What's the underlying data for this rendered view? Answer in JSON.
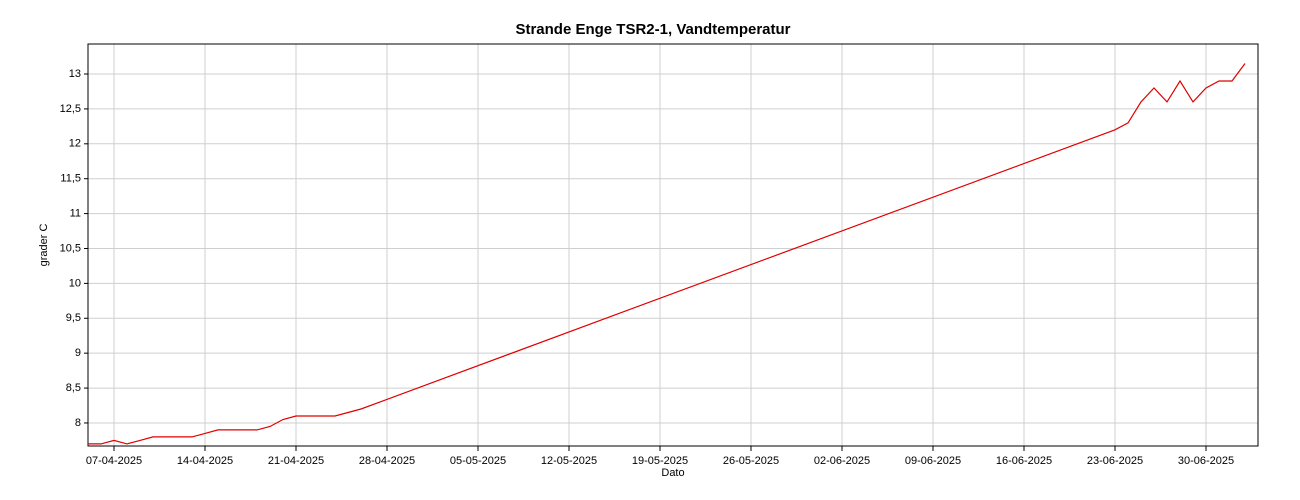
{
  "chart_data": {
    "type": "line",
    "title": "Strande Enge TSR2-1, Vandtemperatur",
    "x_label": "Dato",
    "y_label": "grader C",
    "xlim": [
      "05-04-2025",
      "04-07-2025"
    ],
    "xticks": [
      "07-04-2025",
      "14-04-2025",
      "21-04-2025",
      "28-04-2025",
      "05-05-2025",
      "12-05-2025",
      "19-05-2025",
      "26-05-2025",
      "02-06-2025",
      "09-06-2025",
      "16-06-2025",
      "23-06-2025",
      "30-06-2025"
    ],
    "ylim": [
      7.67,
      13.43
    ],
    "yticks": [
      8,
      {
        "value": 8.5,
        "label": "8,5"
      },
      9,
      {
        "value": 9.5,
        "label": "9,5"
      },
      10,
      {
        "value": 10.5,
        "label": "10,5"
      },
      11,
      {
        "value": 11.5,
        "label": "11,5"
      },
      12,
      {
        "value": 12.5,
        "label": "12,5"
      },
      13
    ],
    "grid": true,
    "series": [
      {
        "name": "Vandtemperatur",
        "color": "#e00000",
        "x": [
          "05-04-2025",
          "06-04-2025",
          "07-04-2025",
          "08-04-2025",
          "09-04-2025",
          "10-04-2025",
          "11-04-2025",
          "12-04-2025",
          "13-04-2025",
          "14-04-2025",
          "15-04-2025",
          "16-04-2025",
          "17-04-2025",
          "18-04-2025",
          "19-04-2025",
          "20-04-2025",
          "21-04-2025",
          "22-04-2025",
          "23-04-2025",
          "24-04-2025",
          "25-04-2025",
          "26-04-2025",
          "23-06-2025",
          "24-06-2025",
          "25-06-2025",
          "26-06-2025",
          "27-06-2025",
          "28-06-2025",
          "29-06-2025",
          "30-06-2025",
          "01-07-2025",
          "02-07-2025",
          "03-07-2025"
        ],
        "values": [
          7.7,
          7.7,
          7.75,
          7.7,
          7.75,
          7.8,
          7.8,
          7.8,
          7.8,
          7.85,
          7.9,
          7.9,
          7.9,
          7.9,
          7.95,
          8.05,
          8.1,
          8.1,
          8.1,
          8.1,
          8.15,
          8.2,
          12.2,
          12.3,
          12.6,
          12.8,
          12.6,
          12.9,
          12.6,
          12.8,
          12.9,
          12.9,
          13.15
        ]
      }
    ]
  }
}
